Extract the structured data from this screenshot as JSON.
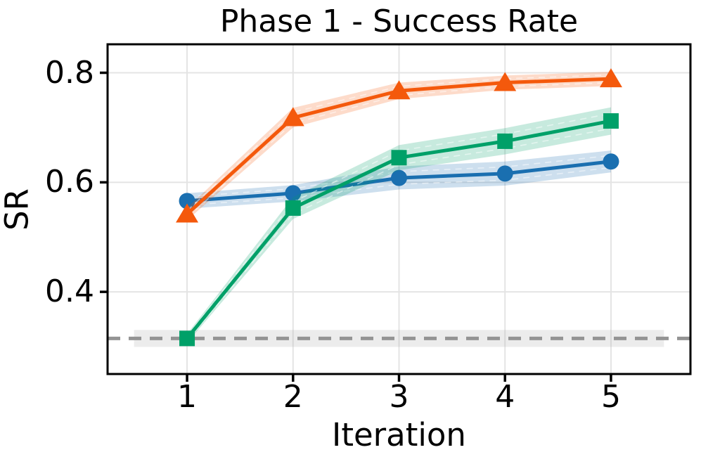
{
  "chart_data": {
    "type": "line",
    "title": "Phase 1 - Success Rate",
    "xlabel": "Iteration",
    "ylabel": "SR",
    "x": [
      1,
      2,
      3,
      4,
      5
    ],
    "xlim": [
      0.25,
      5.75
    ],
    "ylim": [
      0.25,
      0.852
    ],
    "grid": true,
    "legend": "none",
    "xticks": [
      {
        "value": 1,
        "label": "1"
      },
      {
        "value": 2,
        "label": "2"
      },
      {
        "value": 3,
        "label": "3"
      },
      {
        "value": 4,
        "label": "4"
      },
      {
        "value": 5,
        "label": "5"
      }
    ],
    "yticks": [
      {
        "value": 0.4,
        "label": "0.4"
      },
      {
        "value": 0.6,
        "label": "0.6"
      },
      {
        "value": 0.8,
        "label": "0.8"
      }
    ],
    "series": [
      {
        "name": "blue-circle",
        "marker": "circle",
        "color": "#1A6FB0",
        "values": [
          0.566,
          0.58,
          0.608,
          0.616,
          0.638
        ],
        "band": [
          0.014,
          0.015,
          0.021,
          0.022,
          0.02
        ]
      },
      {
        "name": "green-square",
        "marker": "square",
        "color": "#00A068",
        "values": [
          0.315,
          0.553,
          0.645,
          0.675,
          0.712
        ],
        "band": [
          0.008,
          0.02,
          0.023,
          0.024,
          0.025
        ]
      },
      {
        "name": "orange-triangle",
        "marker": "triangle",
        "color": "#F4590C",
        "values": [
          0.542,
          0.718,
          0.767,
          0.782,
          0.789
        ],
        "band": [
          0.011,
          0.018,
          0.015,
          0.013,
          0.013
        ]
      }
    ],
    "baseline": {
      "value": 0.315,
      "style": "dashed",
      "color": "#949494",
      "band_halfwidth": 0.0155,
      "band_x": [
        0.5,
        5.5
      ],
      "band_color": "#AAAAAA",
      "band_opacity": 0.22
    },
    "style": {
      "grid_color": "#E4E4E4",
      "spine_color": "#000000",
      "text_color": "#000000",
      "band_opacity": 0.22,
      "line_width": 5
    }
  }
}
